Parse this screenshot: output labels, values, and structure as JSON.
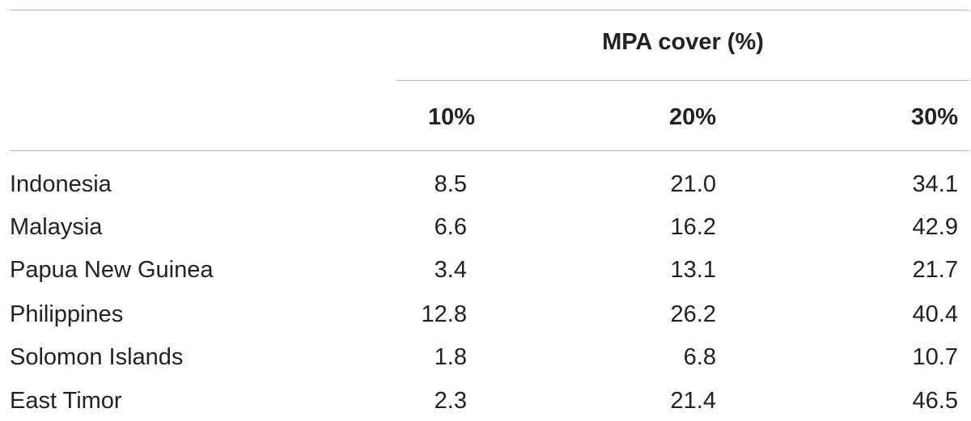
{
  "table": {
    "group_header": "MPA cover (%)",
    "columns": [
      "10%",
      "20%",
      "30%"
    ],
    "rows": [
      {
        "country": "Indonesia",
        "values": [
          "8.5",
          "21.0",
          "34.1"
        ]
      },
      {
        "country": "Malaysia",
        "values": [
          "6.6",
          "16.2",
          "42.9"
        ]
      },
      {
        "country": "Papua New Guinea",
        "values": [
          "3.4",
          "13.1",
          "21.7"
        ]
      },
      {
        "country": "Philippines",
        "values": [
          "12.8",
          "26.2",
          "40.4"
        ]
      },
      {
        "country": "Solomon Islands",
        "values": [
          "1.8",
          "6.8",
          "10.7"
        ]
      },
      {
        "country": "East Timor",
        "values": [
          "2.3",
          "21.4",
          "46.5"
        ]
      }
    ]
  }
}
